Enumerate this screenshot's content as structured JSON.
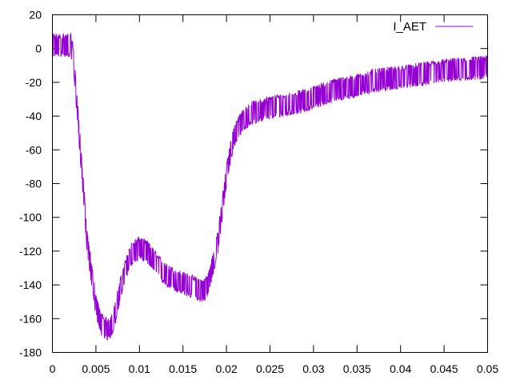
{
  "chart_data": {
    "type": "line",
    "title": "",
    "xlabel": "",
    "ylabel": "",
    "xlim": [
      0,
      0.05
    ],
    "ylim": [
      -180,
      20
    ],
    "x_ticks": [
      0,
      0.005,
      0.01,
      0.015,
      0.02,
      0.025,
      0.03,
      0.035,
      0.04,
      0.045,
      0.05
    ],
    "x_tick_labels": [
      "0",
      "0.005",
      "0.01",
      "0.015",
      "0.02",
      "0.025",
      "0.03",
      "0.035",
      "0.04",
      "0.045",
      "0.05"
    ],
    "y_ticks": [
      -180,
      -160,
      -140,
      -120,
      -100,
      -80,
      -60,
      -40,
      -20,
      0,
      20
    ],
    "y_tick_labels": [
      "-180",
      "-160",
      "-140",
      "-120",
      "-100",
      "-80",
      "-60",
      "-40",
      "-20",
      "0",
      "20"
    ],
    "grid": false,
    "legend_position": "top-right",
    "series": [
      {
        "name": "I_AET",
        "color": "#9400d3",
        "noise_amplitude": 7,
        "envelope": [
          [
            0,
            2
          ],
          [
            0.0021,
            2
          ],
          [
            0.0024,
            -5
          ],
          [
            0.003,
            -45
          ],
          [
            0.004,
            -115
          ],
          [
            0.005,
            -152
          ],
          [
            0.0055,
            -162
          ],
          [
            0.006,
            -166
          ],
          [
            0.0065,
            -166
          ],
          [
            0.007,
            -162
          ],
          [
            0.0075,
            -150
          ],
          [
            0.008,
            -138
          ],
          [
            0.009,
            -122
          ],
          [
            0.01,
            -118
          ],
          [
            0.011,
            -121
          ],
          [
            0.012,
            -128
          ],
          [
            0.013,
            -134
          ],
          [
            0.014,
            -137
          ],
          [
            0.015,
            -139
          ],
          [
            0.016,
            -141
          ],
          [
            0.017,
            -143
          ],
          [
            0.0175,
            -143
          ],
          [
            0.018,
            -138
          ],
          [
            0.019,
            -115
          ],
          [
            0.0195,
            -95
          ],
          [
            0.02,
            -75
          ],
          [
            0.0205,
            -60
          ],
          [
            0.021,
            -50
          ],
          [
            0.022,
            -42
          ],
          [
            0.023,
            -38
          ],
          [
            0.025,
            -35
          ],
          [
            0.027,
            -33
          ],
          [
            0.029,
            -31
          ],
          [
            0.031,
            -27
          ],
          [
            0.033,
            -24
          ],
          [
            0.035,
            -22
          ],
          [
            0.037,
            -19
          ],
          [
            0.04,
            -17
          ],
          [
            0.045,
            -13
          ],
          [
            0.05,
            -11
          ]
        ]
      }
    ]
  }
}
